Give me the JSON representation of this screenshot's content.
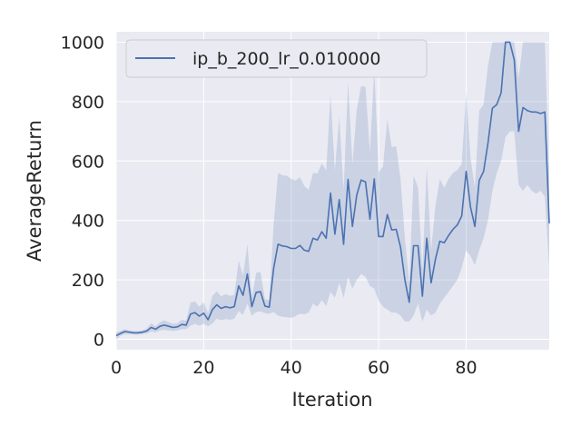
{
  "chart_data": {
    "type": "line",
    "title": "",
    "xlabel": "Iteration",
    "ylabel": "AverageReturn",
    "xlim": [
      0,
      99
    ],
    "ylim": [
      -35,
      1035
    ],
    "xticks": [
      0,
      20,
      40,
      60,
      80
    ],
    "yticks": [
      0,
      200,
      400,
      600,
      800,
      1000
    ],
    "grid": true,
    "background": "#eaeaf2",
    "legend": {
      "location": "top-left"
    },
    "series": [
      {
        "name": "ip_b_200_lr_0.010000",
        "color": "#4c72b0",
        "band_color": "#4c72b0",
        "x": [
          0,
          1,
          2,
          3,
          4,
          5,
          6,
          7,
          8,
          9,
          10,
          11,
          12,
          13,
          14,
          15,
          16,
          17,
          18,
          19,
          20,
          21,
          22,
          23,
          24,
          25,
          26,
          27,
          28,
          29,
          30,
          31,
          32,
          33,
          34,
          35,
          36,
          37,
          38,
          39,
          40,
          41,
          42,
          43,
          44,
          45,
          46,
          47,
          48,
          49,
          50,
          51,
          52,
          53,
          54,
          55,
          56,
          57,
          58,
          59,
          60,
          61,
          62,
          63,
          64,
          65,
          66,
          67,
          68,
          69,
          70,
          71,
          72,
          73,
          74,
          75,
          76,
          77,
          78,
          79,
          80,
          81,
          82,
          83,
          84,
          85,
          86,
          87,
          88,
          89,
          90,
          91,
          92,
          93,
          94,
          95,
          96,
          97,
          98,
          99
        ],
        "values": [
          12,
          20,
          26,
          24,
          22,
          22,
          24,
          28,
          40,
          34,
          44,
          48,
          44,
          40,
          42,
          50,
          48,
          85,
          90,
          78,
          88,
          66,
          100,
          116,
          104,
          110,
          106,
          110,
          180,
          148,
          220,
          110,
          158,
          160,
          112,
          108,
          240,
          320,
          314,
          312,
          306,
          306,
          316,
          300,
          296,
          340,
          334,
          362,
          340,
          492,
          354,
          470,
          320,
          538,
          380,
          486,
          536,
          530,
          404,
          540,
          346,
          346,
          420,
          368,
          370,
          310,
          200,
          125,
          315,
          315,
          145,
          340,
          190,
          270,
          330,
          325,
          350,
          370,
          385,
          415,
          565,
          445,
          380,
          535,
          565,
          660,
          778,
          790,
          830,
          1000,
          1000,
          940,
          700,
          780,
          770,
          765,
          765,
          760,
          765,
          390
        ],
        "lower": [
          0,
          12,
          18,
          18,
          16,
          16,
          18,
          20,
          26,
          24,
          30,
          32,
          30,
          28,
          30,
          34,
          34,
          46,
          52,
          46,
          52,
          44,
          54,
          70,
          64,
          68,
          66,
          70,
          95,
          82,
          120,
          80,
          92,
          94,
          88,
          86,
          92,
          80,
          76,
          74,
          72,
          78,
          86,
          84,
          90,
          120,
          110,
          132,
          112,
          160,
          140,
          190,
          140,
          210,
          170,
          200,
          220,
          210,
          180,
          170,
          130,
          110,
          100,
          90,
          90,
          80,
          60,
          60,
          80,
          120,
          60,
          100,
          80,
          90,
          120,
          140,
          160,
          180,
          200,
          240,
          300,
          280,
          250,
          300,
          340,
          400,
          500,
          560,
          600,
          680,
          700,
          700,
          520,
          500,
          520,
          500,
          490,
          500,
          480,
          240
        ],
        "upper": [
          24,
          28,
          34,
          30,
          28,
          28,
          30,
          36,
          54,
          44,
          58,
          64,
          58,
          52,
          54,
          66,
          62,
          124,
          128,
          110,
          124,
          88,
          146,
          162,
          144,
          152,
          146,
          150,
          265,
          214,
          320,
          140,
          224,
          226,
          136,
          130,
          388,
          560,
          552,
          550,
          540,
          534,
          546,
          516,
          502,
          560,
          558,
          592,
          568,
          824,
          568,
          750,
          500,
          866,
          590,
          772,
          852,
          850,
          628,
          910,
          562,
          582,
          740,
          646,
          650,
          540,
          340,
          190,
          550,
          510,
          230,
          580,
          300,
          450,
          540,
          510,
          540,
          560,
          570,
          590,
          830,
          610,
          510,
          770,
          790,
          920,
          1000,
          1000,
          1000,
          1000,
          1000,
          1000,
          880,
          1000,
          1000,
          1000,
          1000,
          1000,
          1000,
          540
        ]
      }
    ]
  }
}
